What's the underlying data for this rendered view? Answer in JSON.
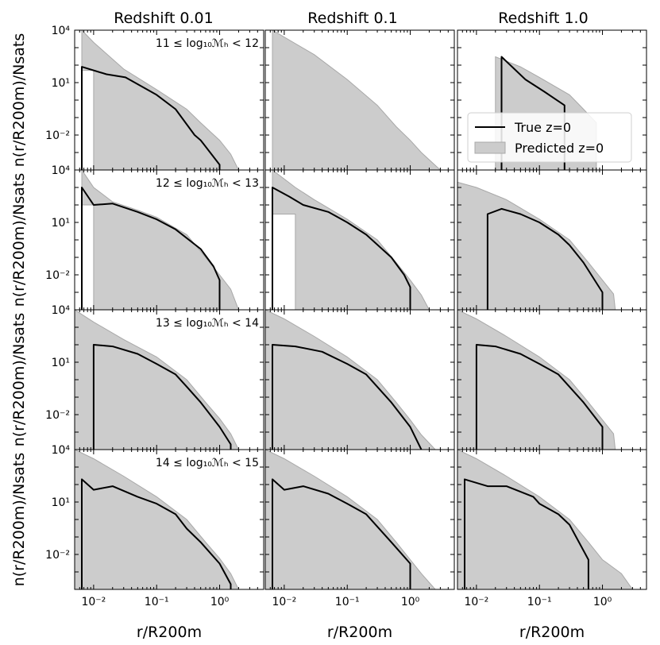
{
  "column_titles": [
    "Redshift 0.01",
    "Redshift 0.1",
    "Redshift 1.0"
  ],
  "row_labels": [
    "11 ≤ log₁₀ℳₕ < 12",
    "12 ≤ log₁₀ℳₕ < 13",
    "13 ≤ log₁₀ℳₕ < 14",
    "14 ≤ log₁₀ℳₕ < 15"
  ],
  "ylabel": "n(r/R200m)/Nsats",
  "xlabel": "r/R200m",
  "legend": {
    "true_label": "True z=0",
    "pred_label": "Predicted z=0"
  },
  "y_tick_labels": [
    "10⁴",
    "10¹",
    "10⁻²"
  ],
  "x_tick_labels": [
    "10⁻²",
    "10⁻¹",
    "10⁰"
  ],
  "colors": {
    "band": "#cccccc",
    "band_edge": "#a8a8a8",
    "line": "#000000"
  },
  "chart_data": {
    "type": "line",
    "layout": "4x3 grid of panels",
    "xscale": "log",
    "yscale": "log",
    "xlim": [
      0.005,
      5
    ],
    "ylim": [
      0.0001,
      10000
    ],
    "legend_position": "inside panel row 1 column 3",
    "panels": [
      {
        "row": 0,
        "col": 0,
        "true": [
          [
            0.0065,
            0.0001
          ],
          [
            0.0065,
            80
          ],
          [
            0.016,
            30
          ],
          [
            0.032,
            20
          ],
          [
            0.1,
            2
          ],
          [
            0.2,
            0.3
          ],
          [
            0.4,
            0.01
          ],
          [
            0.5,
            0.005
          ],
          [
            1.0,
            0.0002
          ],
          [
            1.0,
            0.0001
          ]
        ],
        "pred_upper": [
          [
            0.0065,
            10000
          ],
          [
            0.01,
            2000
          ],
          [
            0.03,
            60
          ],
          [
            0.1,
            4
          ],
          [
            0.3,
            0.3
          ],
          [
            0.5,
            0.05
          ],
          [
            1.0,
            0.005
          ],
          [
            1.5,
            0.0008
          ],
          [
            2.0,
            0.0001
          ]
        ],
        "pred_lower": [
          [
            0.0065,
            0.0001
          ],
          [
            0.0065,
            50
          ],
          [
            0.01,
            50
          ],
          [
            0.01,
            0.0001
          ]
        ]
      },
      {
        "row": 0,
        "col": 1,
        "true": [
          [
            0.0065,
            0.0001
          ],
          [
            0.0065,
            0.0001
          ]
        ],
        "pred_upper": [
          [
            0.0065,
            10000
          ],
          [
            0.03,
            400
          ],
          [
            0.1,
            15
          ],
          [
            0.3,
            0.5
          ],
          [
            0.6,
            0.03
          ],
          [
            1.0,
            0.005
          ],
          [
            1.5,
            0.001
          ],
          [
            3.0,
            0.0001
          ]
        ],
        "pred_lower": [
          [
            0.0065,
            0.0001
          ],
          [
            0.006,
            0.0001
          ]
        ]
      },
      {
        "row": 0,
        "col": 2,
        "true": [
          [
            0.025,
            0.0001
          ],
          [
            0.025,
            300
          ],
          [
            0.06,
            15
          ],
          [
            0.12,
            3
          ],
          [
            0.25,
            0.5
          ],
          [
            0.25,
            0.0001
          ]
        ],
        "pred_upper": [
          [
            0.02,
            300
          ],
          [
            0.05,
            80
          ],
          [
            0.1,
            20
          ],
          [
            0.3,
            2
          ],
          [
            0.5,
            0.3
          ],
          [
            0.8,
            0.05
          ],
          [
            0.8,
            0.0001
          ]
        ],
        "pred_lower": [
          [
            0.02,
            0.0001
          ],
          [
            0.02,
            0.0001
          ]
        ]
      },
      {
        "row": 1,
        "col": 0,
        "true": [
          [
            0.0065,
            0.0001
          ],
          [
            0.0065,
            1000
          ],
          [
            0.01,
            100
          ],
          [
            0.02,
            120
          ],
          [
            0.05,
            40
          ],
          [
            0.1,
            15
          ],
          [
            0.2,
            4
          ],
          [
            0.5,
            0.3
          ],
          [
            0.8,
            0.03
          ],
          [
            1.0,
            0.005
          ],
          [
            1.0,
            0.0001
          ]
        ],
        "pred_upper": [
          [
            0.0065,
            10000
          ],
          [
            0.01,
            1000
          ],
          [
            0.02,
            150
          ],
          [
            0.05,
            50
          ],
          [
            0.1,
            20
          ],
          [
            0.3,
            2
          ],
          [
            0.6,
            0.1
          ],
          [
            1.0,
            0.01
          ],
          [
            1.5,
            0.0015
          ],
          [
            2.0,
            0.0001
          ]
        ],
        "pred_lower": [
          [
            0.0065,
            0.0001
          ],
          [
            0.0065,
            100
          ],
          [
            0.01,
            100
          ],
          [
            0.01,
            0.0001
          ]
        ]
      },
      {
        "row": 1,
        "col": 1,
        "true": [
          [
            0.0065,
            0.0001
          ],
          [
            0.0065,
            1000
          ],
          [
            0.012,
            300
          ],
          [
            0.02,
            100
          ],
          [
            0.05,
            40
          ],
          [
            0.1,
            10
          ],
          [
            0.2,
            2
          ],
          [
            0.5,
            0.1
          ],
          [
            0.8,
            0.01
          ],
          [
            1.0,
            0.002
          ],
          [
            1.0,
            0.0001
          ]
        ],
        "pred_upper": [
          [
            0.0065,
            10000
          ],
          [
            0.015,
            1000
          ],
          [
            0.03,
            200
          ],
          [
            0.1,
            15
          ],
          [
            0.3,
            1
          ],
          [
            0.6,
            0.05
          ],
          [
            1.0,
            0.005
          ],
          [
            1.5,
            0.0007
          ],
          [
            2.0,
            0.0001
          ]
        ],
        "pred_lower": [
          [
            0.0065,
            0.0001
          ],
          [
            0.0065,
            30
          ],
          [
            0.015,
            30
          ],
          [
            0.015,
            0.0001
          ]
        ]
      },
      {
        "row": 1,
        "col": 2,
        "true": [
          [
            0.015,
            0.0001
          ],
          [
            0.015,
            30
          ],
          [
            0.025,
            60
          ],
          [
            0.05,
            30
          ],
          [
            0.1,
            10
          ],
          [
            0.2,
            2
          ],
          [
            0.3,
            0.5
          ],
          [
            0.5,
            0.05
          ],
          [
            1.0,
            0.001
          ],
          [
            1.0,
            0.0001
          ]
        ],
        "pred_upper": [
          [
            0.005,
            2000
          ],
          [
            0.01,
            1000
          ],
          [
            0.03,
            200
          ],
          [
            0.1,
            15
          ],
          [
            0.3,
            1
          ],
          [
            0.6,
            0.05
          ],
          [
            1.0,
            0.005
          ],
          [
            1.5,
            0.0008
          ],
          [
            1.6,
            0.0001
          ]
        ],
        "pred_lower": [
          [
            0.005,
            0.0001
          ],
          [
            0.005,
            0.0001
          ]
        ]
      },
      {
        "row": 2,
        "col": 0,
        "true": [
          [
            0.01,
            0.0001
          ],
          [
            0.01,
            100
          ],
          [
            0.02,
            80
          ],
          [
            0.05,
            30
          ],
          [
            0.1,
            8
          ],
          [
            0.2,
            2
          ],
          [
            0.3,
            0.4
          ],
          [
            0.5,
            0.05
          ],
          [
            1.0,
            0.002
          ],
          [
            1.5,
            0.0002
          ],
          [
            1.5,
            0.0001
          ]
        ],
        "pred_upper": [
          [
            0.005,
            10000
          ],
          [
            0.01,
            2000
          ],
          [
            0.03,
            200
          ],
          [
            0.1,
            20
          ],
          [
            0.3,
            1
          ],
          [
            0.6,
            0.05
          ],
          [
            1.0,
            0.006
          ],
          [
            1.5,
            0.0008
          ],
          [
            2.0,
            0.0001
          ]
        ],
        "pred_lower": [
          [
            0.005,
            0.0001
          ],
          [
            0.005,
            0.0001
          ]
        ]
      },
      {
        "row": 2,
        "col": 1,
        "true": [
          [
            0.0065,
            0.0001
          ],
          [
            0.0065,
            100
          ],
          [
            0.015,
            80
          ],
          [
            0.04,
            40
          ],
          [
            0.1,
            8
          ],
          [
            0.2,
            2
          ],
          [
            0.5,
            0.05
          ],
          [
            1.0,
            0.002
          ],
          [
            1.5,
            0.0001
          ]
        ],
        "pred_upper": [
          [
            0.005,
            10000
          ],
          [
            0.01,
            3000
          ],
          [
            0.03,
            300
          ],
          [
            0.1,
            20
          ],
          [
            0.3,
            1
          ],
          [
            0.6,
            0.05
          ],
          [
            1.0,
            0.005
          ],
          [
            1.5,
            0.0007
          ],
          [
            2.5,
            0.0001
          ]
        ],
        "pred_lower": [
          [
            0.005,
            0.0001
          ],
          [
            0.005,
            0.0001
          ]
        ]
      },
      {
        "row": 2,
        "col": 2,
        "true": [
          [
            0.01,
            0.0001
          ],
          [
            0.01,
            100
          ],
          [
            0.02,
            80
          ],
          [
            0.05,
            30
          ],
          [
            0.1,
            8
          ],
          [
            0.2,
            2
          ],
          [
            0.5,
            0.05
          ],
          [
            1.0,
            0.002
          ],
          [
            1.0,
            0.0001
          ]
        ],
        "pred_upper": [
          [
            0.005,
            10000
          ],
          [
            0.01,
            3000
          ],
          [
            0.03,
            300
          ],
          [
            0.1,
            20
          ],
          [
            0.3,
            1
          ],
          [
            0.6,
            0.05
          ],
          [
            1.0,
            0.005
          ],
          [
            1.5,
            0.0008
          ],
          [
            1.6,
            0.0001
          ]
        ],
        "pred_lower": [
          [
            0.005,
            0.0001
          ],
          [
            0.005,
            0.0001
          ]
        ]
      },
      {
        "row": 3,
        "col": 0,
        "true": [
          [
            0.0065,
            0.0001
          ],
          [
            0.0065,
            200
          ],
          [
            0.01,
            50
          ],
          [
            0.02,
            80
          ],
          [
            0.05,
            20
          ],
          [
            0.1,
            8
          ],
          [
            0.2,
            2
          ],
          [
            0.3,
            0.3
          ],
          [
            0.5,
            0.05
          ],
          [
            1.0,
            0.003
          ],
          [
            1.5,
            0.0002
          ],
          [
            1.5,
            0.0001
          ]
        ],
        "pred_upper": [
          [
            0.005,
            10000
          ],
          [
            0.01,
            3000
          ],
          [
            0.03,
            300
          ],
          [
            0.1,
            20
          ],
          [
            0.3,
            1
          ],
          [
            0.6,
            0.05
          ],
          [
            1.0,
            0.006
          ],
          [
            1.5,
            0.0008
          ],
          [
            2.0,
            0.0001
          ]
        ],
        "pred_lower": [
          [
            0.005,
            0.0001
          ],
          [
            0.005,
            0.0001
          ]
        ]
      },
      {
        "row": 3,
        "col": 1,
        "true": [
          [
            0.0065,
            0.0001
          ],
          [
            0.0065,
            200
          ],
          [
            0.01,
            50
          ],
          [
            0.02,
            80
          ],
          [
            0.05,
            30
          ],
          [
            0.1,
            8
          ],
          [
            0.2,
            2
          ],
          [
            0.5,
            0.05
          ],
          [
            1.0,
            0.003
          ],
          [
            1.0,
            0.0001
          ]
        ],
        "pred_upper": [
          [
            0.005,
            10000
          ],
          [
            0.01,
            3000
          ],
          [
            0.03,
            300
          ],
          [
            0.1,
            20
          ],
          [
            0.3,
            1
          ],
          [
            0.6,
            0.05
          ],
          [
            1.0,
            0.005
          ],
          [
            1.5,
            0.0008
          ],
          [
            2.5,
            0.0001
          ]
        ],
        "pred_lower": [
          [
            0.005,
            0.0001
          ],
          [
            0.005,
            0.0001
          ]
        ]
      },
      {
        "row": 3,
        "col": 2,
        "true": [
          [
            0.0065,
            0.0001
          ],
          [
            0.0065,
            200
          ],
          [
            0.015,
            80
          ],
          [
            0.03,
            80
          ],
          [
            0.08,
            20
          ],
          [
            0.1,
            8
          ],
          [
            0.2,
            2
          ],
          [
            0.3,
            0.5
          ],
          [
            0.6,
            0.005
          ],
          [
            0.6,
            0.0001
          ]
        ],
        "pred_upper": [
          [
            0.005,
            10000
          ],
          [
            0.01,
            3000
          ],
          [
            0.03,
            300
          ],
          [
            0.1,
            20
          ],
          [
            0.3,
            1
          ],
          [
            0.6,
            0.05
          ],
          [
            1.0,
            0.005
          ],
          [
            2.0,
            0.0008
          ],
          [
            3.0,
            0.0001
          ]
        ],
        "pred_lower": [
          [
            0.005,
            0.0001
          ],
          [
            0.005,
            0.0001
          ]
        ]
      }
    ]
  }
}
